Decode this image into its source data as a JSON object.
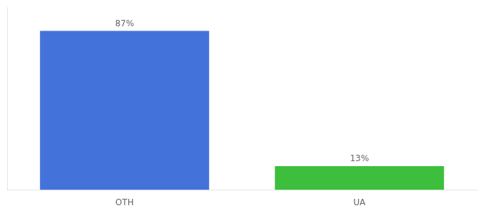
{
  "chart_data": {
    "type": "bar",
    "categories": [
      "OTH",
      "UA"
    ],
    "values": [
      87,
      13
    ],
    "colors": [
      "#4472db",
      "#3dbf3d"
    ],
    "value_labels": [
      "87%",
      "13%"
    ],
    "data_labels": true,
    "ylim": [
      0,
      100
    ],
    "tick_labels": "x",
    "grid": false
  }
}
